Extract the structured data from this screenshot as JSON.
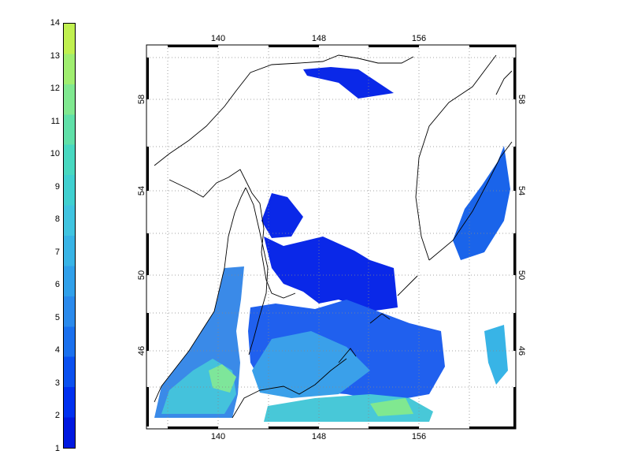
{
  "colorbar": {
    "labels": [
      "1",
      "2",
      "3",
      "4",
      "5",
      "6",
      "7",
      "8",
      "9",
      "10",
      "11",
      "12",
      "13",
      "14"
    ],
    "min": 1,
    "max": 14,
    "colors": [
      "#0018e0",
      "#0030f0",
      "#0a50f0",
      "#1a70ee",
      "#2a8aec",
      "#30a0ea",
      "#38b4e6",
      "#40c4e0",
      "#40d0d0",
      "#48d8c0",
      "#60e0a8",
      "#80e890",
      "#a0ee70",
      "#c0f050"
    ]
  },
  "map": {
    "lon_labels": [
      "140",
      "148",
      "156"
    ],
    "lat_labels": [
      "58",
      "54",
      "50",
      "46"
    ],
    "lon_range": [
      135,
      164
    ],
    "lat_range": [
      42,
      61
    ],
    "grid": "dotted",
    "frame": "black-white-checker"
  }
}
